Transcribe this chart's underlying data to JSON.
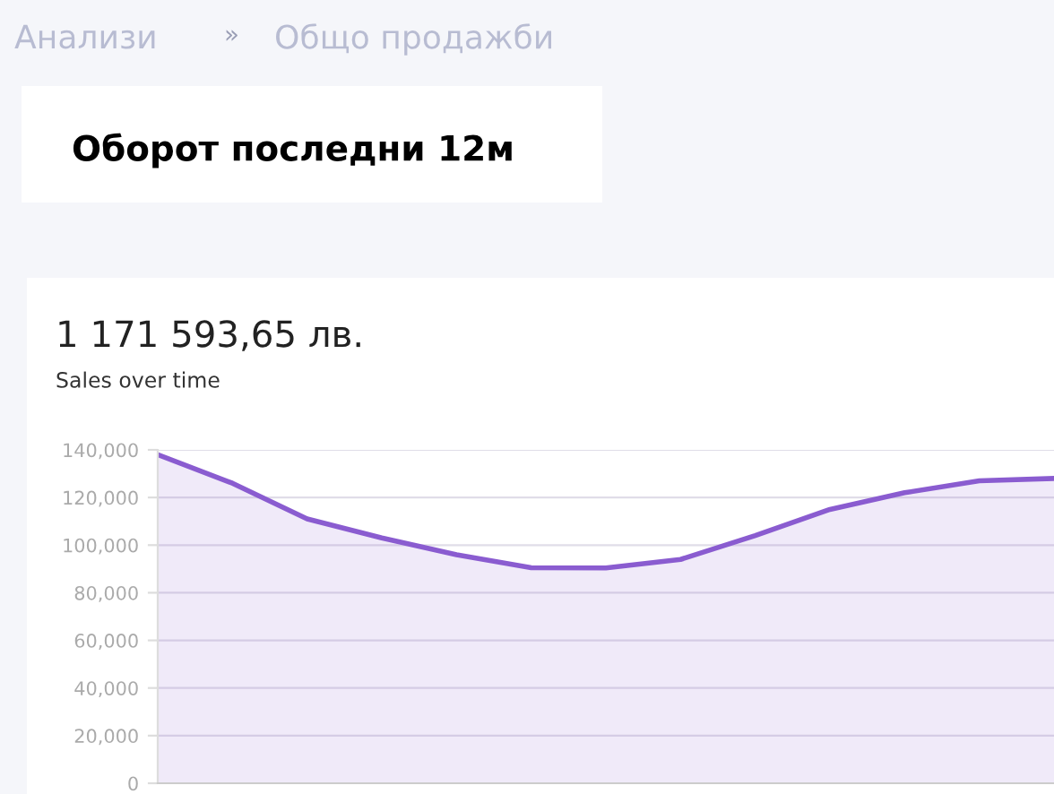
{
  "chart_data": {
    "type": "area",
    "title": "Оборот последни 12м",
    "subtitle": "1 171 593,65 лв.",
    "annotations": [
      "Анализи",
      "»",
      "Общо продажби",
      "Sales over time"
    ],
    "categories": [
      null,
      null,
      null,
      null,
      null,
      null,
      null,
      null,
      null,
      null,
      null,
      null,
      null
    ],
    "series": [
      {
        "color": "#8a5cd0",
        "values": [
          138000,
          126000,
          111000,
          103000,
          96000,
          90500,
          90400,
          94000,
          104000,
          115000,
          122000,
          127000,
          128000
        ]
      }
    ],
    "ylim": [
      0,
      140000
    ],
    "yticks": [
      0,
      {
        "value": 20000,
        "label": "20,000"
      },
      {
        "value": 40000,
        "label": "40,000"
      },
      {
        "value": 60000,
        "label": "60,000"
      },
      {
        "value": 80000,
        "label": "80,000"
      },
      {
        "value": 100000,
        "label": "100,000"
      },
      {
        "value": 120000,
        "label": "120,000"
      },
      {
        "value": 140000,
        "label": "140,000"
      }
    ],
    "grid": "y",
    "legend": false,
    "marker": "none",
    "line_style": "solid"
  }
}
